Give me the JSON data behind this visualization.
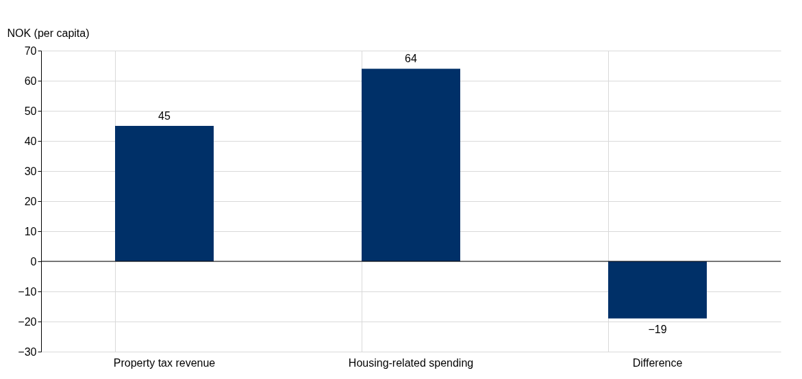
{
  "chart_data": {
    "type": "bar",
    "ylabel": "NOK (per capita)",
    "categories": [
      "Property tax revenue",
      "Housing-related spending",
      "Difference"
    ],
    "values": [
      45,
      64,
      -19
    ],
    "color": "#003068",
    "ylim": [
      -30,
      70
    ],
    "yticks": [
      -30,
      -20,
      -10,
      0,
      10,
      20,
      30,
      40,
      50,
      60,
      70
    ],
    "grid": true,
    "data_labels": true
  }
}
